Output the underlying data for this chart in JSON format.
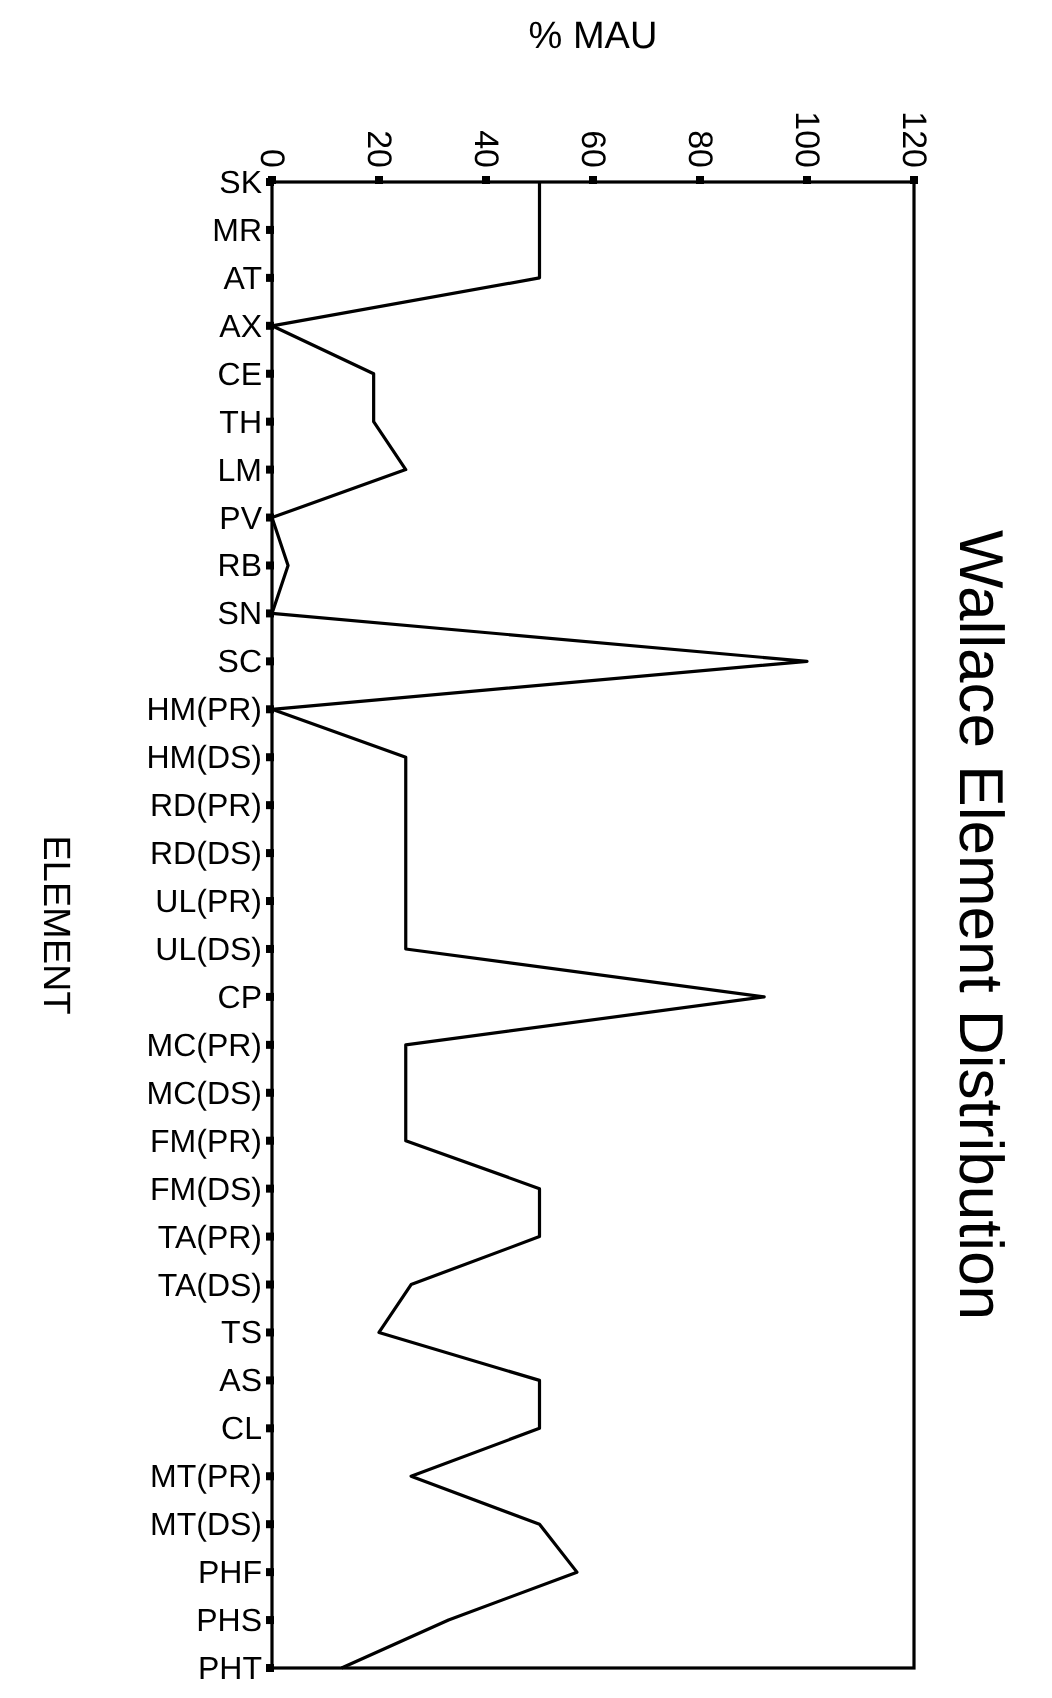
{
  "chart_data": {
    "type": "line",
    "orientation": "horizontal",
    "title": "Wallace Element Distribution",
    "xlabel": "% MAU",
    "ylabel": "ELEMENT",
    "categories": [
      "SK",
      "MR",
      "AT",
      "AX",
      "CE",
      "TH",
      "LM",
      "PV",
      "RB",
      "SN",
      "SC",
      "HM(PR)",
      "HM(DS)",
      "RD(PR)",
      "RD(DS)",
      "UL(PR)",
      "UL(DS)",
      "CP",
      "MC(PR)",
      "MC(DS)",
      "FM(PR)",
      "FM(DS)",
      "TA(PR)",
      "TA(DS)",
      "TS",
      "AS",
      "CL",
      "MT(PR)",
      "MT(DS)",
      "PHF",
      "PHS",
      "PHT"
    ],
    "series": [
      {
        "color": "#000000",
        "values": [
          50,
          50,
          50,
          0,
          19,
          19,
          25,
          0,
          3,
          0,
          100,
          0,
          25,
          25,
          25,
          25,
          25,
          92,
          25,
          25,
          25,
          50,
          50,
          26,
          20,
          50,
          50,
          26,
          50,
          57,
          33,
          13
        ]
      }
    ],
    "xlim": [
      0,
      120
    ],
    "xticks": [
      0,
      20,
      40,
      60,
      80,
      100,
      120
    ],
    "grid": false,
    "marker": "none",
    "line_style": "solid"
  }
}
